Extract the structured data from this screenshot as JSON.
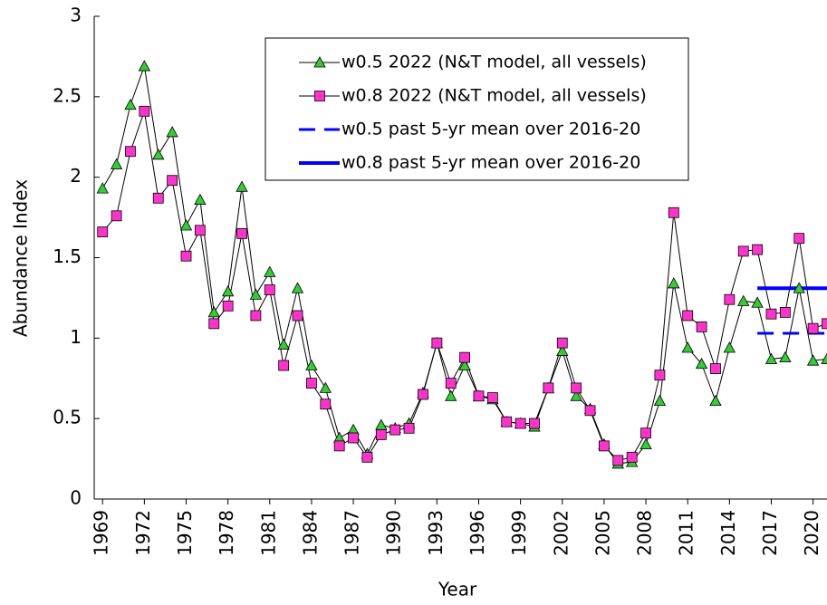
{
  "chart_data": {
    "type": "line",
    "x_label": "Year",
    "y_label": "Abundance Index",
    "x": [
      1969,
      1970,
      1971,
      1972,
      1973,
      1974,
      1975,
      1976,
      1977,
      1978,
      1979,
      1980,
      1981,
      1982,
      1983,
      1984,
      1985,
      1986,
      1987,
      1988,
      1989,
      1990,
      1991,
      1992,
      1993,
      1994,
      1995,
      1996,
      1997,
      1998,
      1999,
      2000,
      2001,
      2002,
      2003,
      2004,
      2005,
      2006,
      2007,
      2008,
      2009,
      2010,
      2011,
      2012,
      2013,
      2014,
      2015,
      2016,
      2017,
      2018,
      2019,
      2020,
      2021
    ],
    "xlim": [
      1968.4,
      2021
    ],
    "xticks": [
      1969,
      1972,
      1975,
      1978,
      1981,
      1984,
      1987,
      1990,
      1993,
      1996,
      1999,
      2002,
      2005,
      2008,
      2011,
      2014,
      2017,
      2020
    ],
    "ylim": [
      0,
      3
    ],
    "yticks": [
      0,
      0.5,
      1,
      1.5,
      2,
      2.5,
      3
    ],
    "grid": false,
    "legend": "top-center",
    "series": [
      {
        "name": "w0.5 2022 (N&T model, all vessels)",
        "color": "#000000",
        "marker": "triangle",
        "marker_color": "#33cc33",
        "line_style": "solid",
        "line_width": 1,
        "values": [
          1.93,
          2.08,
          2.45,
          2.69,
          2.14,
          2.28,
          1.7,
          1.86,
          1.16,
          1.29,
          1.94,
          1.27,
          1.41,
          0.96,
          1.31,
          0.83,
          0.69,
          0.38,
          0.43,
          0.28,
          0.46,
          0.44,
          0.47,
          0.66,
          0.97,
          0.64,
          0.83,
          0.64,
          0.62,
          0.48,
          0.47,
          0.45,
          0.69,
          0.92,
          0.64,
          0.56,
          0.34,
          0.22,
          0.23,
          0.34,
          0.61,
          1.34,
          0.94,
          0.84,
          0.61,
          0.94,
          1.23,
          1.22,
          0.87,
          0.88,
          1.31,
          0.86,
          0.87
        ]
      },
      {
        "name": "w0.8 2022 (N&T model, all vessels)",
        "color": "#000000",
        "marker": "square",
        "marker_color": "#ff33cc",
        "line_style": "solid",
        "line_width": 1,
        "values": [
          1.66,
          1.76,
          2.16,
          2.41,
          1.87,
          1.98,
          1.51,
          1.67,
          1.09,
          1.2,
          1.65,
          1.14,
          1.3,
          0.83,
          1.14,
          0.72,
          0.59,
          0.33,
          0.38,
          0.26,
          0.4,
          0.43,
          0.44,
          0.65,
          0.97,
          0.72,
          0.88,
          0.64,
          0.63,
          0.48,
          0.47,
          0.47,
          0.69,
          0.97,
          0.69,
          0.55,
          0.33,
          0.24,
          0.26,
          0.41,
          0.77,
          1.78,
          1.14,
          1.07,
          0.81,
          1.24,
          1.54,
          1.55,
          1.15,
          1.16,
          1.62,
          1.06,
          1.09
        ]
      },
      {
        "name": "w0.5 past 5-yr mean over 2016-20",
        "color": "#0000ff",
        "line_style": "dashed",
        "line_width": 3,
        "x": [
          2016,
          2021
        ],
        "values": [
          1.03,
          1.03
        ]
      },
      {
        "name": "w0.8 past 5-yr mean over 2016-20",
        "color": "#0000ff",
        "line_style": "solid",
        "line_width": 4,
        "x": [
          2016,
          2021
        ],
        "values": [
          1.31,
          1.31
        ]
      }
    ]
  }
}
